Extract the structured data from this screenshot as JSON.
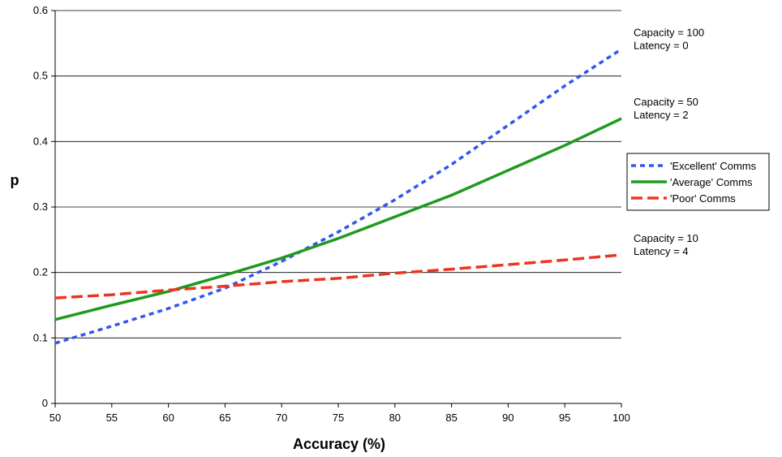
{
  "chart_data": {
    "type": "line",
    "xlabel": "Accuracy (%)",
    "ylabel": "p",
    "xlim": [
      50,
      100
    ],
    "ylim": [
      0,
      0.6
    ],
    "x_ticks": [
      50,
      55,
      60,
      65,
      70,
      75,
      80,
      85,
      90,
      95,
      100
    ],
    "y_ticks": [
      0,
      0.1,
      0.2,
      0.3,
      0.4,
      0.5,
      0.6
    ],
    "y_tick_labels": [
      "0",
      "0.1",
      "0.2",
      "0.3",
      "0.4",
      "0.5",
      "0.6"
    ],
    "grid": "horizontal",
    "legend_position": "right",
    "series": [
      {
        "name": "'Excellent' Comms",
        "color": "#3355ee",
        "dash": "dotted",
        "x": [
          50,
          55,
          60,
          65,
          70,
          75,
          80,
          85,
          90,
          95,
          100
        ],
        "y": [
          0.092,
          0.118,
          0.145,
          0.176,
          0.217,
          0.262,
          0.311,
          0.365,
          0.425,
          0.485,
          0.541
        ]
      },
      {
        "name": "'Average' Comms",
        "color": "#1e9a1e",
        "dash": "solid",
        "x": [
          50,
          55,
          60,
          65,
          70,
          75,
          80,
          85,
          90,
          95,
          100
        ],
        "y": [
          0.128,
          0.15,
          0.171,
          0.196,
          0.222,
          0.252,
          0.285,
          0.318,
          0.356,
          0.394,
          0.435
        ]
      },
      {
        "name": "'Poor' Comms",
        "color": "#ee3322",
        "dash": "dashed",
        "x": [
          50,
          55,
          60,
          65,
          70,
          75,
          80,
          85,
          90,
          95,
          100
        ],
        "y": [
          0.161,
          0.166,
          0.173,
          0.179,
          0.186,
          0.191,
          0.199,
          0.205,
          0.212,
          0.219,
          0.227
        ]
      }
    ],
    "annotations": [
      {
        "lines": [
          "Capacity = 100",
          "Latency = 0"
        ],
        "anchor_y": 0.541
      },
      {
        "lines": [
          "Capacity = 50",
          "Latency = 2"
        ],
        "anchor_y": 0.435
      },
      {
        "lines": [
          "Capacity = 10",
          "Latency = 4"
        ],
        "anchor_y": 0.227
      }
    ]
  }
}
